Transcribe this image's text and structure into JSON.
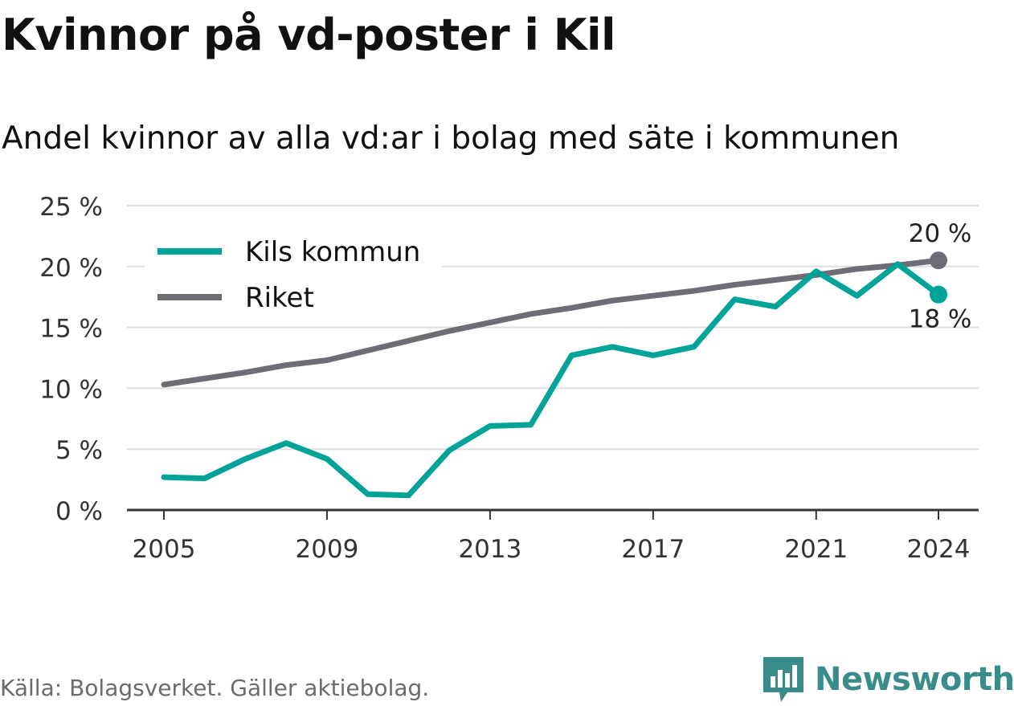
{
  "title": "Kvinnor på vd-poster i Kil",
  "subtitle": "Andel kvinnor av alla vd:ar i bolag med säte i kommunen",
  "source": "Källa: Bolagsverket. Gäller aktiebolag.",
  "brand": {
    "name": "Newsworthy",
    "icon": "bar-chart-logo-icon"
  },
  "colors": {
    "kil": "#00a398",
    "riket": "#6e6d75",
    "grid": "#dedede",
    "axis": "#333333",
    "brand": "#3a8c8a"
  },
  "chart_data": {
    "type": "line",
    "title": "Kvinnor på vd-poster i Kil",
    "subtitle": "Andel kvinnor av alla vd:ar i bolag med säte i kommunen",
    "x": [
      2005,
      2006,
      2007,
      2008,
      2009,
      2010,
      2011,
      2012,
      2013,
      2014,
      2015,
      2016,
      2017,
      2018,
      2019,
      2020,
      2021,
      2022,
      2023,
      2024
    ],
    "xticks": [
      2005,
      2009,
      2013,
      2017,
      2021,
      2024
    ],
    "xtick_labels": [
      "2005",
      "2009",
      "2013",
      "2017",
      "2021",
      "2024"
    ],
    "ylim": [
      0,
      25
    ],
    "yticks": [
      0,
      5,
      10,
      15,
      20,
      25
    ],
    "ytick_labels": [
      "0 %",
      "5 %",
      "10 %",
      "15 %",
      "20 %",
      "25 %"
    ],
    "grid": true,
    "legend_position": "top-left",
    "series": [
      {
        "name": "Kils kommun",
        "color": "#00a398",
        "values": [
          2.7,
          2.6,
          4.2,
          5.5,
          4.2,
          1.3,
          1.2,
          4.9,
          6.9,
          7.0,
          12.7,
          13.4,
          12.7,
          13.4,
          17.3,
          16.7,
          19.6,
          17.6,
          20.2,
          17.7
        ],
        "end_label": "18 %"
      },
      {
        "name": "Riket",
        "color": "#6e6d75",
        "values": [
          10.3,
          10.8,
          11.3,
          11.9,
          12.3,
          13.1,
          13.9,
          14.7,
          15.4,
          16.1,
          16.6,
          17.2,
          17.6,
          18.0,
          18.5,
          18.9,
          19.3,
          19.8,
          20.1,
          20.5
        ],
        "end_label": "20 %"
      }
    ]
  }
}
